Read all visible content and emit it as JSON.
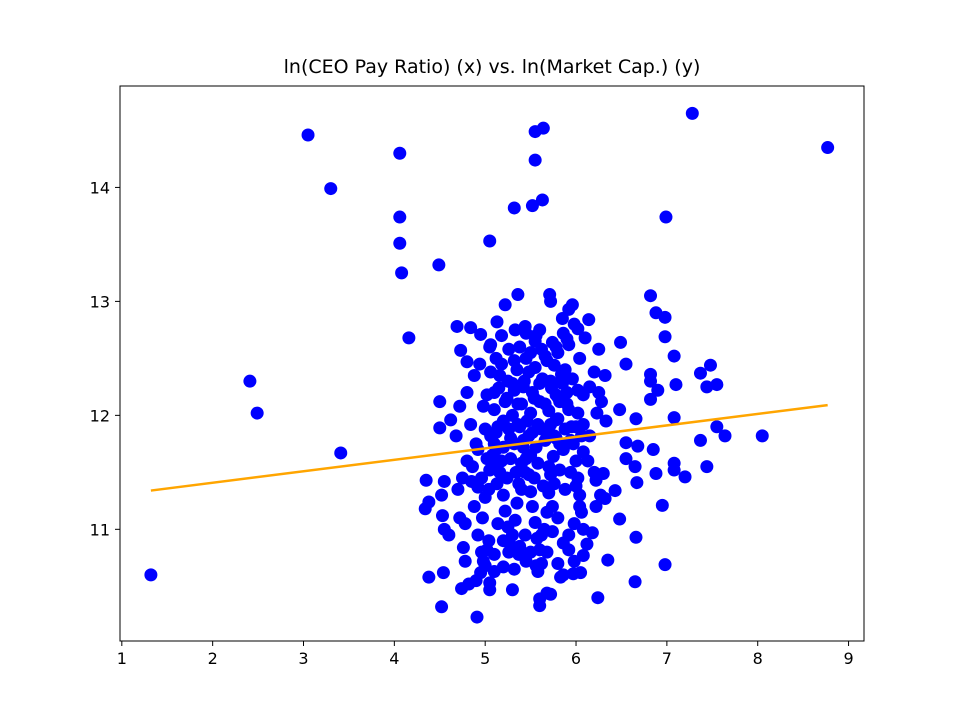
{
  "chart_data": {
    "type": "scatter",
    "title": "ln(CEO Pay Ratio) (x) vs. ln(Market Cap.) (y)",
    "xlabel": "",
    "ylabel": "",
    "xlim": [
      0.98,
      9.17
    ],
    "ylim": [
      10.02,
      14.89
    ],
    "xticks": [
      1,
      2,
      3,
      4,
      5,
      6,
      7,
      8,
      9
    ],
    "yticks": [
      11,
      12,
      13,
      14
    ],
    "grid": false,
    "colors": {
      "points": "#0000ff",
      "fit_line": "#ffa500",
      "axes": "#000000"
    },
    "fit_line": {
      "x": [
        1.32,
        8.77
      ],
      "y": [
        11.34,
        12.09
      ]
    },
    "points": [
      [
        1.32,
        10.6
      ],
      [
        2.41,
        12.3
      ],
      [
        2.49,
        12.02
      ],
      [
        3.05,
        14.46
      ],
      [
        3.3,
        13.99
      ],
      [
        3.41,
        11.67
      ],
      [
        4.06,
        14.3
      ],
      [
        4.06,
        13.74
      ],
      [
        4.06,
        13.51
      ],
      [
        4.08,
        13.25
      ],
      [
        4.16,
        12.68
      ],
      [
        4.49,
        13.32
      ],
      [
        5.05,
        13.53
      ],
      [
        5.32,
        13.82
      ],
      [
        5.52,
        13.84
      ],
      [
        5.63,
        13.89
      ],
      [
        5.55,
        14.24
      ],
      [
        5.55,
        14.49
      ],
      [
        5.64,
        14.52
      ],
      [
        6.99,
        13.74
      ],
      [
        7.28,
        14.65
      ],
      [
        8.77,
        14.35
      ],
      [
        8.05,
        11.82
      ],
      [
        4.5,
        12.12
      ],
      [
        4.5,
        11.89
      ],
      [
        4.69,
        12.78
      ],
      [
        4.84,
        12.77
      ],
      [
        4.8,
        12.47
      ],
      [
        4.73,
        12.57
      ],
      [
        4.95,
        12.71
      ],
      [
        5.05,
        12.6
      ],
      [
        5.13,
        12.82
      ],
      [
        5.22,
        12.97
      ],
      [
        5.36,
        13.06
      ],
      [
        5.33,
        12.75
      ],
      [
        5.45,
        12.72
      ],
      [
        5.55,
        12.65
      ],
      [
        5.6,
        12.75
      ],
      [
        5.71,
        13.06
      ],
      [
        5.72,
        13.0
      ],
      [
        5.85,
        12.85
      ],
      [
        5.92,
        12.93
      ],
      [
        5.96,
        12.97
      ],
      [
        6.14,
        12.84
      ],
      [
        6.02,
        12.76
      ],
      [
        5.9,
        12.67
      ],
      [
        5.78,
        12.6
      ],
      [
        6.25,
        12.58
      ],
      [
        6.49,
        12.64
      ],
      [
        6.55,
        12.45
      ],
      [
        6.82,
        13.05
      ],
      [
        6.88,
        12.9
      ],
      [
        6.98,
        12.86
      ],
      [
        6.98,
        12.69
      ],
      [
        7.08,
        12.52
      ],
      [
        7.37,
        12.37
      ],
      [
        7.48,
        12.44
      ],
      [
        7.44,
        12.25
      ],
      [
        7.55,
        12.27
      ],
      [
        6.82,
        12.36
      ],
      [
        6.82,
        12.3
      ],
      [
        6.82,
        12.14
      ],
      [
        6.9,
        12.22
      ],
      [
        7.1,
        12.27
      ],
      [
        7.08,
        11.98
      ],
      [
        7.37,
        11.78
      ],
      [
        7.44,
        11.55
      ],
      [
        7.55,
        11.9
      ],
      [
        7.64,
        11.82
      ],
      [
        7.08,
        11.58
      ],
      [
        7.08,
        11.52
      ],
      [
        7.2,
        11.46
      ],
      [
        6.85,
        11.7
      ],
      [
        6.88,
        11.49
      ],
      [
        6.68,
        11.73
      ],
      [
        6.66,
        11.97
      ],
      [
        6.55,
        11.76
      ],
      [
        6.55,
        11.62
      ],
      [
        6.65,
        11.55
      ],
      [
        6.67,
        11.41
      ],
      [
        6.95,
        11.21
      ],
      [
        6.66,
        10.93
      ],
      [
        6.65,
        10.54
      ],
      [
        6.98,
        10.69
      ],
      [
        6.48,
        11.09
      ],
      [
        6.43,
        11.34
      ],
      [
        6.3,
        11.49
      ],
      [
        6.32,
        11.27
      ],
      [
        6.35,
        10.73
      ],
      [
        6.24,
        10.4
      ],
      [
        4.35,
        11.43
      ],
      [
        4.38,
        11.24
      ],
      [
        4.34,
        11.18
      ],
      [
        4.52,
        11.3
      ],
      [
        4.53,
        11.12
      ],
      [
        4.55,
        11.42
      ],
      [
        4.55,
        11.0
      ],
      [
        4.6,
        10.95
      ],
      [
        4.54,
        10.62
      ],
      [
        4.38,
        10.58
      ],
      [
        4.52,
        10.32
      ],
      [
        4.91,
        10.23
      ],
      [
        4.74,
        10.48
      ],
      [
        4.78,
        10.72
      ],
      [
        4.76,
        10.84
      ],
      [
        4.82,
        10.52
      ],
      [
        4.9,
        10.55
      ],
      [
        4.95,
        10.62
      ],
      [
        4.98,
        10.72
      ],
      [
        5.02,
        10.82
      ],
      [
        5.05,
        10.53
      ],
      [
        5.05,
        10.47
      ],
      [
        5.1,
        10.63
      ],
      [
        5.2,
        10.67
      ],
      [
        5.3,
        10.47
      ],
      [
        5.37,
        10.78
      ],
      [
        5.45,
        10.72
      ],
      [
        5.58,
        10.63
      ],
      [
        5.6,
        10.39
      ],
      [
        5.6,
        10.33
      ],
      [
        5.68,
        10.44
      ],
      [
        5.72,
        10.43
      ],
      [
        5.83,
        10.58
      ],
      [
        5.97,
        10.61
      ],
      [
        6.05,
        10.62
      ],
      [
        6.08,
        10.77
      ],
      [
        6.12,
        10.87
      ],
      [
        6.18,
        10.97
      ],
      [
        6.22,
        11.2
      ],
      [
        6.27,
        11.3
      ],
      [
        6.22,
        11.43
      ],
      [
        6.2,
        11.5
      ],
      [
        6.13,
        11.6
      ],
      [
        6.08,
        11.68
      ],
      [
        6.15,
        11.82
      ],
      [
        6.08,
        11.92
      ],
      [
        6.02,
        12.02
      ],
      [
        6.08,
        12.18
      ],
      [
        6.15,
        12.25
      ],
      [
        6.25,
        12.2
      ],
      [
        6.2,
        12.38
      ],
      [
        6.32,
        12.35
      ],
      [
        6.28,
        12.12
      ],
      [
        6.23,
        12.02
      ],
      [
        6.33,
        11.95
      ],
      [
        6.48,
        12.05
      ],
      [
        4.7,
        11.35
      ],
      [
        4.72,
        11.1
      ],
      [
        4.78,
        11.05
      ],
      [
        4.88,
        11.2
      ],
      [
        4.92,
        11.37
      ],
      [
        4.85,
        11.42
      ],
      [
        4.97,
        11.1
      ],
      [
        5.0,
        11.28
      ],
      [
        5.05,
        11.52
      ],
      [
        5.08,
        11.65
      ],
      [
        5.1,
        11.75
      ],
      [
        5.13,
        11.4
      ],
      [
        5.16,
        11.5
      ],
      [
        5.2,
        11.3
      ],
      [
        5.22,
        11.16
      ],
      [
        5.25,
        11.02
      ],
      [
        5.28,
        10.86
      ],
      [
        5.3,
        10.95
      ],
      [
        5.33,
        11.08
      ],
      [
        5.35,
        11.23
      ],
      [
        5.37,
        11.4
      ],
      [
        5.4,
        11.58
      ],
      [
        5.42,
        11.72
      ],
      [
        5.45,
        11.62
      ],
      [
        5.48,
        11.48
      ],
      [
        5.5,
        11.33
      ],
      [
        5.52,
        11.2
      ],
      [
        5.55,
        11.06
      ],
      [
        5.57,
        10.92
      ],
      [
        5.6,
        10.82
      ],
      [
        5.62,
        10.7
      ],
      [
        5.65,
        11.0
      ],
      [
        5.68,
        11.15
      ],
      [
        5.7,
        11.32
      ],
      [
        5.72,
        11.48
      ],
      [
        5.75,
        11.64
      ],
      [
        5.78,
        11.8
      ],
      [
        5.8,
        11.97
      ],
      [
        5.82,
        12.12
      ],
      [
        5.85,
        12.28
      ],
      [
        5.88,
        12.4
      ],
      [
        5.9,
        12.2
      ],
      [
        5.92,
        12.05
      ],
      [
        5.95,
        11.9
      ],
      [
        5.97,
        11.75
      ],
      [
        6.0,
        11.6
      ],
      [
        6.02,
        11.45
      ],
      [
        6.04,
        11.3
      ],
      [
        6.06,
        11.15
      ],
      [
        6.08,
        11.0
      ],
      [
        4.62,
        11.96
      ],
      [
        4.68,
        11.82
      ],
      [
        4.72,
        12.08
      ],
      [
        4.8,
        12.2
      ],
      [
        4.84,
        11.92
      ],
      [
        4.88,
        12.35
      ],
      [
        4.9,
        11.75
      ],
      [
        4.94,
        12.45
      ],
      [
        4.98,
        12.08
      ],
      [
        5.0,
        11.88
      ],
      [
        5.02,
        12.18
      ],
      [
        5.06,
        12.38
      ],
      [
        5.1,
        12.05
      ],
      [
        5.12,
        11.85
      ],
      [
        5.15,
        12.24
      ],
      [
        5.18,
        12.45
      ],
      [
        5.2,
        11.95
      ],
      [
        5.22,
        12.12
      ],
      [
        5.25,
        12.3
      ],
      [
        5.28,
        11.8
      ],
      [
        5.3,
        12.0
      ],
      [
        5.32,
        12.22
      ],
      [
        5.35,
        12.4
      ],
      [
        5.38,
        11.9
      ],
      [
        5.4,
        12.1
      ],
      [
        5.43,
        12.3
      ],
      [
        5.45,
        12.5
      ],
      [
        5.48,
        11.82
      ],
      [
        5.5,
        12.02
      ],
      [
        5.52,
        12.2
      ],
      [
        5.55,
        12.42
      ],
      [
        5.58,
        11.92
      ],
      [
        5.6,
        12.12
      ],
      [
        5.63,
        12.32
      ],
      [
        5.66,
        12.52
      ],
      [
        5.68,
        11.84
      ],
      [
        5.7,
        12.04
      ],
      [
        5.73,
        12.24
      ],
      [
        5.76,
        12.44
      ],
      [
        5.78,
        11.96
      ],
      [
        5.8,
        12.16
      ],
      [
        5.84,
        12.36
      ],
      [
        5.86,
        11.7
      ],
      [
        4.75,
        11.45
      ],
      [
        4.8,
        11.6
      ],
      [
        4.86,
        11.55
      ],
      [
        4.92,
        11.7
      ],
      [
        4.96,
        11.45
      ],
      [
        5.04,
        11.35
      ],
      [
        5.08,
        11.55
      ],
      [
        5.12,
        11.7
      ],
      [
        5.18,
        11.6
      ],
      [
        5.24,
        11.45
      ],
      [
        5.28,
        11.62
      ],
      [
        5.34,
        11.5
      ],
      [
        5.4,
        11.35
      ],
      [
        5.44,
        11.5
      ],
      [
        5.5,
        11.65
      ],
      [
        5.54,
        11.45
      ],
      [
        5.58,
        11.58
      ],
      [
        5.64,
        11.38
      ],
      [
        5.7,
        11.55
      ],
      [
        5.76,
        11.4
      ],
      [
        5.82,
        11.52
      ],
      [
        5.88,
        11.35
      ],
      [
        5.94,
        11.5
      ],
      [
        6.0,
        11.38
      ],
      [
        6.04,
        11.2
      ],
      [
        5.98,
        11.05
      ],
      [
        5.92,
        10.95
      ],
      [
        5.86,
        10.88
      ],
      [
        5.8,
        11.1
      ],
      [
        5.74,
        11.2
      ],
      [
        4.92,
        10.95
      ],
      [
        4.96,
        10.8
      ],
      [
        5.0,
        10.68
      ],
      [
        5.04,
        10.9
      ],
      [
        5.1,
        10.78
      ],
      [
        5.14,
        11.05
      ],
      [
        5.2,
        10.9
      ],
      [
        5.26,
        10.8
      ],
      [
        5.32,
        10.65
      ],
      [
        5.38,
        10.85
      ],
      [
        5.44,
        10.95
      ],
      [
        5.5,
        10.8
      ],
      [
        5.56,
        10.68
      ],
      [
        5.62,
        10.95
      ],
      [
        5.68,
        10.8
      ],
      [
        5.74,
        10.98
      ],
      [
        5.8,
        10.7
      ],
      [
        5.86,
        10.6
      ],
      [
        5.92,
        10.82
      ],
      [
        5.98,
        10.72
      ],
      [
        5.06,
        12.62
      ],
      [
        5.12,
        12.5
      ],
      [
        5.18,
        12.7
      ],
      [
        5.26,
        12.58
      ],
      [
        5.32,
        12.48
      ],
      [
        5.38,
        12.6
      ],
      [
        5.44,
        12.78
      ],
      [
        5.5,
        12.55
      ],
      [
        5.56,
        12.7
      ],
      [
        5.62,
        12.58
      ],
      [
        5.68,
        12.48
      ],
      [
        5.74,
        12.64
      ],
      [
        5.8,
        12.55
      ],
      [
        5.86,
        12.72
      ],
      [
        5.92,
        12.62
      ],
      [
        5.98,
        12.8
      ],
      [
        6.04,
        12.5
      ],
      [
        6.1,
        12.68
      ],
      [
        5.02,
        11.62
      ],
      [
        5.06,
        11.82
      ],
      [
        5.14,
        11.9
      ],
      [
        5.2,
        11.72
      ],
      [
        5.26,
        11.88
      ],
      [
        5.32,
        11.75
      ],
      [
        5.36,
        11.92
      ],
      [
        5.42,
        11.78
      ],
      [
        5.46,
        11.95
      ],
      [
        5.52,
        11.85
      ],
      [
        5.56,
        11.72
      ],
      [
        5.62,
        11.88
      ],
      [
        5.66,
        11.78
      ],
      [
        5.72,
        11.92
      ],
      [
        5.76,
        11.82
      ],
      [
        5.82,
        11.75
      ],
      [
        5.88,
        11.88
      ],
      [
        5.94,
        11.78
      ],
      [
        6.0,
        11.9
      ],
      [
        6.06,
        11.82
      ],
      [
        5.1,
        12.2
      ],
      [
        5.16,
        12.35
      ],
      [
        5.24,
        12.15
      ],
      [
        5.3,
        12.28
      ],
      [
        5.36,
        12.1
      ],
      [
        5.42,
        12.25
      ],
      [
        5.48,
        12.38
      ],
      [
        5.54,
        12.15
      ],
      [
        5.6,
        12.28
      ],
      [
        5.66,
        12.1
      ],
      [
        5.72,
        12.3
      ],
      [
        5.78,
        12.18
      ],
      [
        5.84,
        12.3
      ],
      [
        5.9,
        12.1
      ],
      [
        5.96,
        12.32
      ],
      [
        6.02,
        12.22
      ]
    ]
  }
}
